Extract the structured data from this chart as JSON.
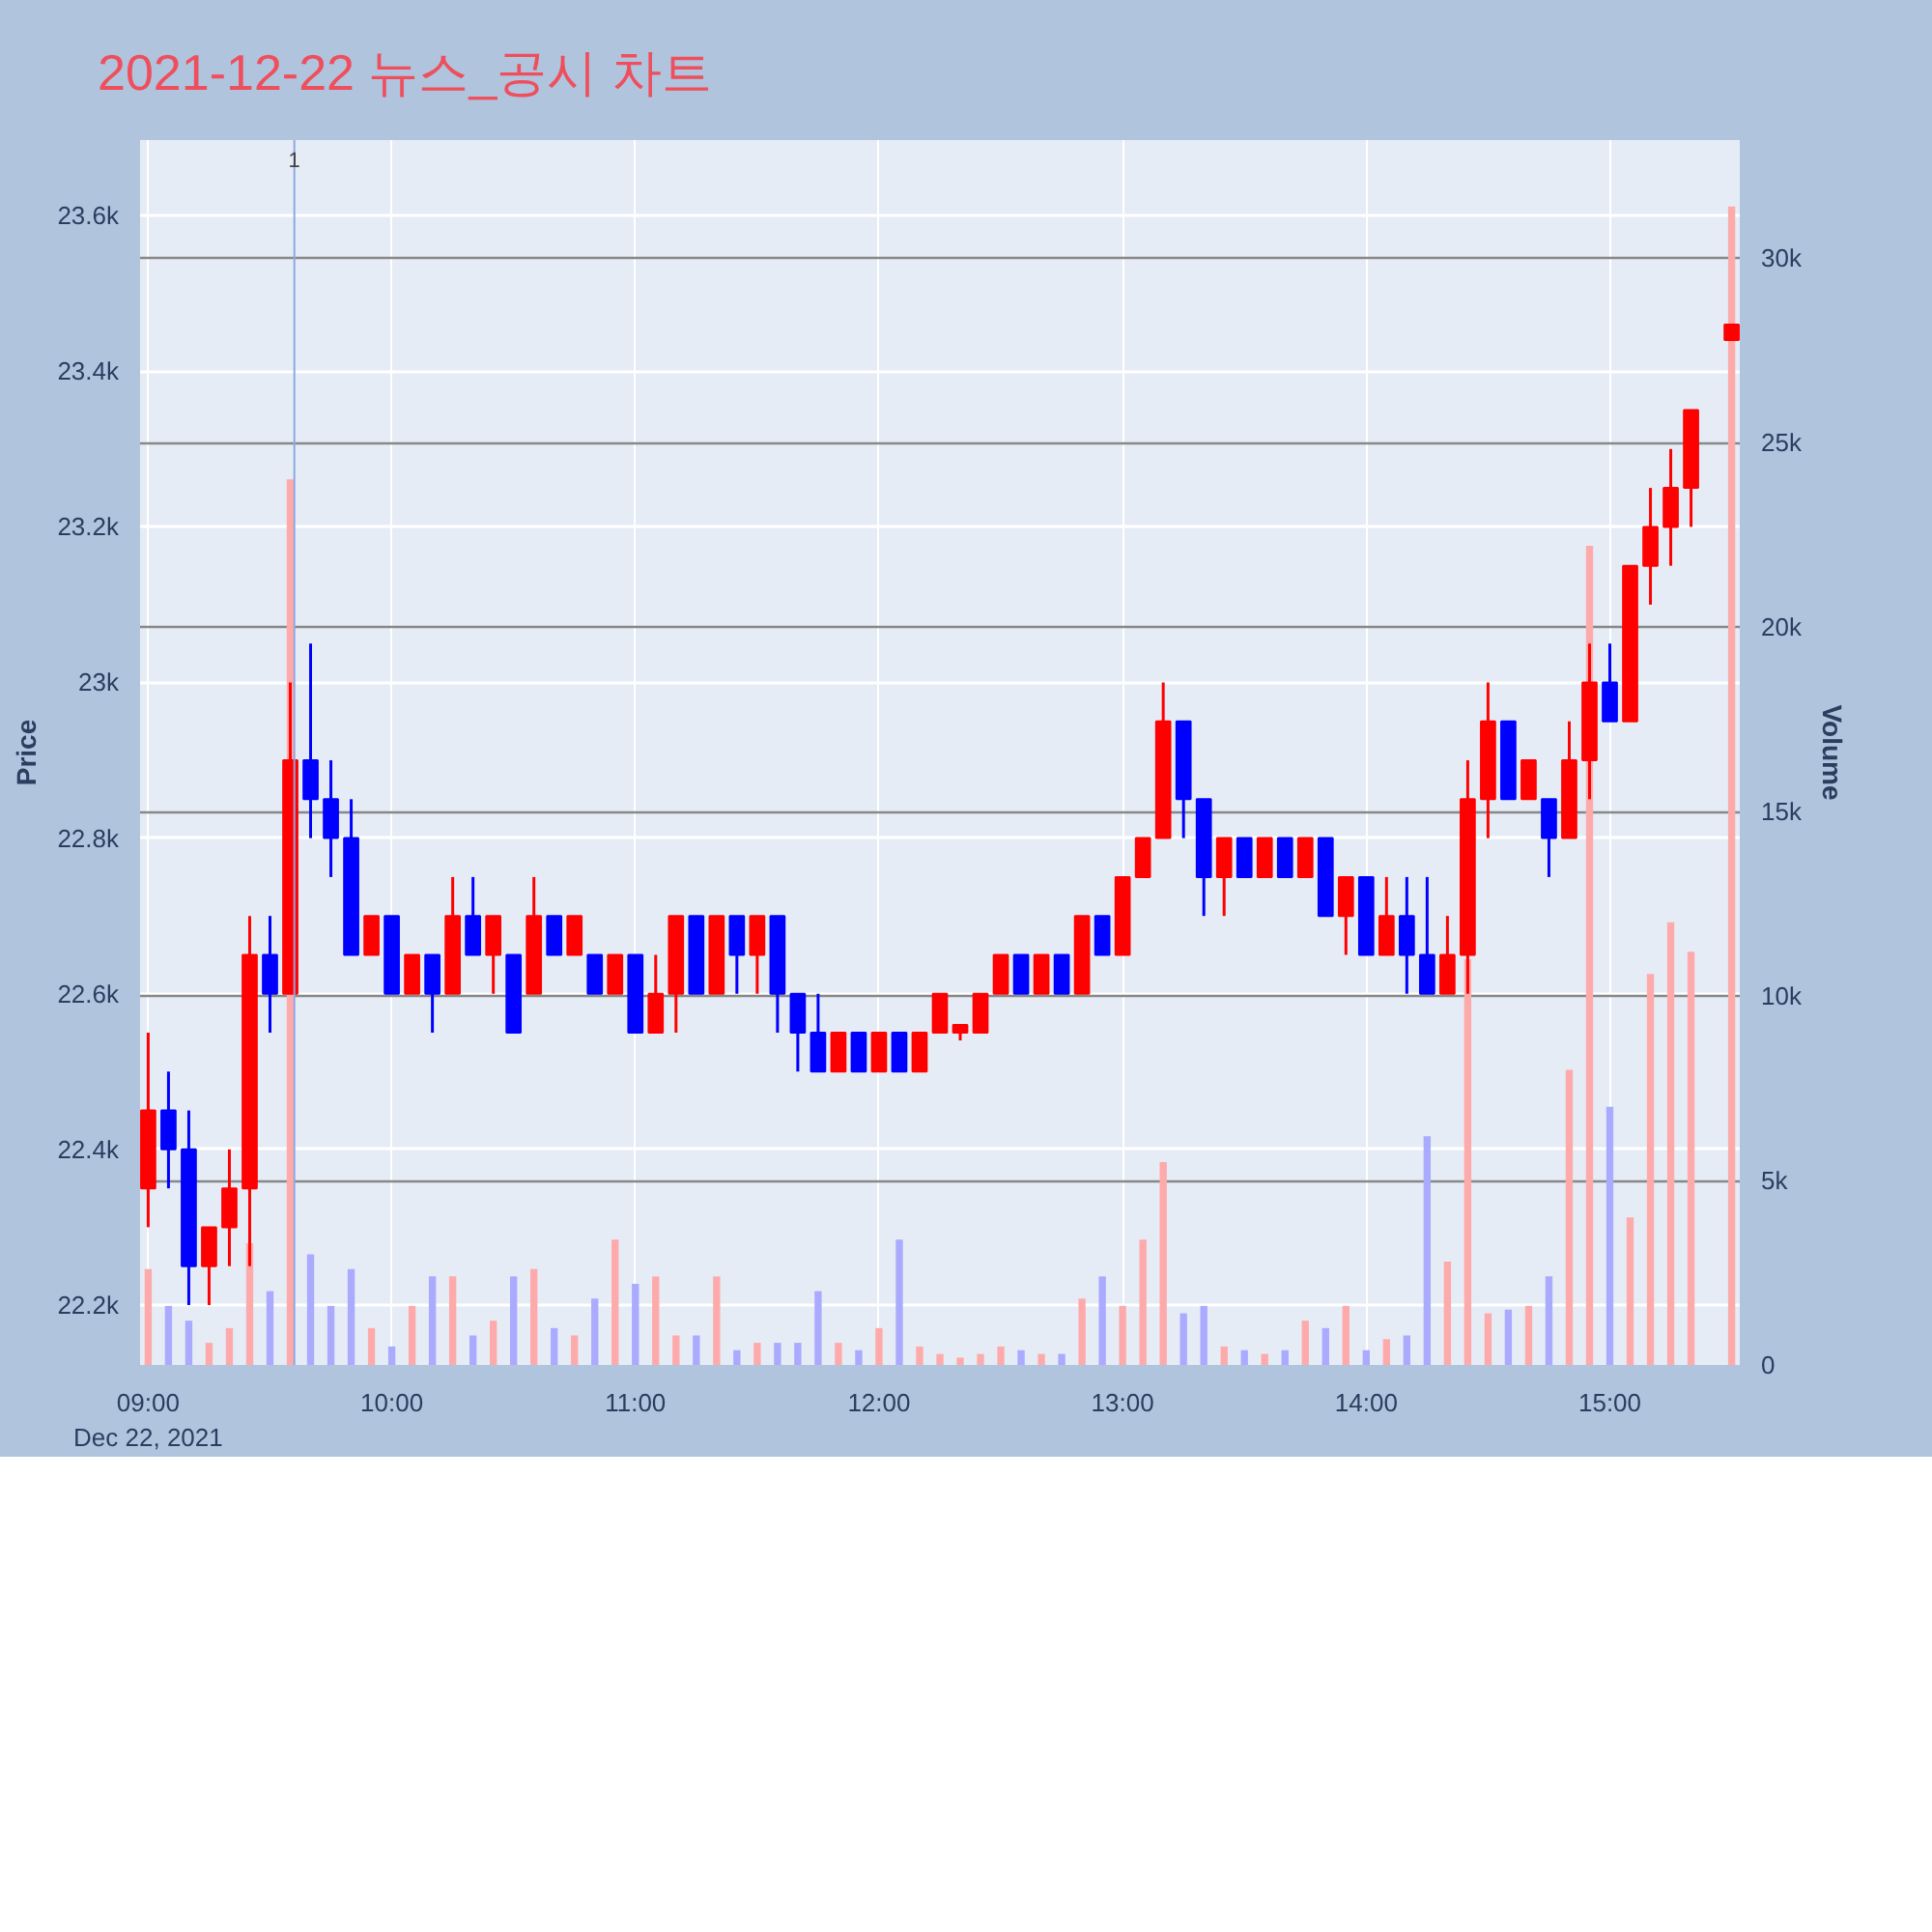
{
  "chart_data": {
    "type": "candlestick",
    "title": "2021-12-22 뉴스_공시 차트",
    "ylabel": "Price",
    "y2label": "Volume",
    "x": [
      "2021-12-22T09:00",
      "2021-12-22T09:05",
      "2021-12-22T09:10",
      "2021-12-22T09:15",
      "2021-12-22T09:20",
      "2021-12-22T09:25",
      "2021-12-22T09:30",
      "2021-12-22T09:35",
      "2021-12-22T09:40",
      "2021-12-22T09:45",
      "2021-12-22T09:50",
      "2021-12-22T09:55",
      "2021-12-22T10:00",
      "2021-12-22T10:05",
      "2021-12-22T10:10",
      "2021-12-22T10:15",
      "2021-12-22T10:20",
      "2021-12-22T10:25",
      "2021-12-22T10:30",
      "2021-12-22T10:35",
      "2021-12-22T10:40",
      "2021-12-22T10:45",
      "2021-12-22T10:50",
      "2021-12-22T10:55",
      "2021-12-22T11:00",
      "2021-12-22T11:05",
      "2021-12-22T11:10",
      "2021-12-22T11:15",
      "2021-12-22T11:20",
      "2021-12-22T11:25",
      "2021-12-22T11:30",
      "2021-12-22T11:35",
      "2021-12-22T11:40",
      "2021-12-22T11:45",
      "2021-12-22T11:50",
      "2021-12-22T11:55",
      "2021-12-22T12:00",
      "2021-12-22T12:05",
      "2021-12-22T12:10",
      "2021-12-22T12:15",
      "2021-12-22T12:20",
      "2021-12-22T12:25",
      "2021-12-22T12:30",
      "2021-12-22T12:35",
      "2021-12-22T12:40",
      "2021-12-22T12:45",
      "2021-12-22T12:50",
      "2021-12-22T12:55",
      "2021-12-22T13:00",
      "2021-12-22T13:05",
      "2021-12-22T13:10",
      "2021-12-22T13:15",
      "2021-12-22T13:20",
      "2021-12-22T13:25",
      "2021-12-22T13:30",
      "2021-12-22T13:35",
      "2021-12-22T13:40",
      "2021-12-22T13:45",
      "2021-12-22T13:50",
      "2021-12-22T13:55",
      "2021-12-22T14:00",
      "2021-12-22T14:05",
      "2021-12-22T14:10",
      "2021-12-22T14:15",
      "2021-12-22T14:20",
      "2021-12-22T14:25",
      "2021-12-22T14:30",
      "2021-12-22T14:35",
      "2021-12-22T14:40",
      "2021-12-22T14:45",
      "2021-12-22T14:50",
      "2021-12-22T14:55",
      "2021-12-22T15:00",
      "2021-12-22T15:05",
      "2021-12-22T15:10",
      "2021-12-22T15:15",
      "2021-12-22T15:20",
      "2021-12-22T15:30"
    ],
    "series": [
      {
        "type": "bar",
        "axis": "y2",
        "values": [
          2600,
          1600,
          1200,
          600,
          1000,
          3300,
          2000,
          24000,
          3000,
          1600,
          2600,
          1000,
          500,
          1600,
          2400,
          2400,
          800,
          1200,
          2400,
          2600,
          1000,
          800,
          1800,
          3400,
          2200,
          2400,
          800,
          800,
          2400,
          400,
          600,
          600,
          600,
          2000,
          600,
          400,
          1000,
          3400,
          500,
          300,
          200,
          300,
          500,
          400,
          300,
          300,
          1800,
          2400,
          1600,
          3400,
          5500,
          1400,
          1600,
          500,
          400,
          300,
          400,
          1200,
          1000,
          1600,
          400,
          700,
          800,
          6200,
          2800,
          11000,
          1400,
          1500,
          1600,
          2400,
          8000,
          22200,
          7000,
          4000,
          10600,
          12000,
          11200,
          31400
        ],
        "colors": [
          "#ffaaaa",
          "#aaaaff",
          "#aaaaff",
          "#ffaaaa",
          "#ffaaaa",
          "#ffaaaa",
          "#aaaaff",
          "#ffaaaa",
          "#aaaaff",
          "#aaaaff",
          "#aaaaff",
          "#ffaaaa",
          "#aaaaff",
          "#ffaaaa",
          "#aaaaff",
          "#ffaaaa",
          "#aaaaff",
          "#ffaaaa",
          "#aaaaff",
          "#ffaaaa",
          "#aaaaff",
          "#ffaaaa",
          "#aaaaff",
          "#ffaaaa",
          "#aaaaff",
          "#ffaaaa",
          "#ffaaaa",
          "#aaaaff",
          "#ffaaaa",
          "#aaaaff",
          "#ffaaaa",
          "#aaaaff",
          "#aaaaff",
          "#aaaaff",
          "#ffaaaa",
          "#aaaaff",
          "#ffaaaa",
          "#aaaaff",
          "#ffaaaa",
          "#ffaaaa",
          "#ffaaaa",
          "#ffaaaa",
          "#ffaaaa",
          "#aaaaff",
          "#ffaaaa",
          "#aaaaff",
          "#ffaaaa",
          "#aaaaff",
          "#ffaaaa",
          "#ffaaaa",
          "#ffaaaa",
          "#aaaaff",
          "#aaaaff",
          "#ffaaaa",
          "#aaaaff",
          "#ffaaaa",
          "#aaaaff",
          "#ffaaaa",
          "#aaaaff",
          "#ffaaaa",
          "#aaaaff",
          "#ffaaaa",
          "#aaaaff",
          "#aaaaff",
          "#ffaaaa",
          "#ffaaaa",
          "#ffaaaa",
          "#aaaaff",
          "#ffaaaa",
          "#aaaaff",
          "#ffaaaa",
          "#ffaaaa",
          "#aaaaff",
          "#ffaaaa",
          "#ffaaaa",
          "#ffaaaa",
          "#ffaaaa",
          "#ffaaaa"
        ]
      },
      {
        "ohlc": [
          [
            22350,
            22550,
            22300,
            22450
          ],
          [
            22450,
            22500,
            22350,
            22400
          ],
          [
            22400,
            22450,
            22200,
            22250
          ],
          [
            22250,
            22300,
            22200,
            22300
          ],
          [
            22300,
            22400,
            22250,
            22350
          ],
          [
            22350,
            22700,
            22250,
            22650
          ],
          [
            22650,
            22700,
            22550,
            22600
          ],
          [
            22600,
            23000,
            22600,
            22900
          ],
          [
            22900,
            23050,
            22800,
            22850
          ],
          [
            22850,
            22900,
            22750,
            22800
          ],
          [
            22800,
            22850,
            22650,
            22650
          ],
          [
            22650,
            22700,
            22650,
            22700
          ],
          [
            22700,
            22700,
            22600,
            22600
          ],
          [
            22600,
            22650,
            22600,
            22650
          ],
          [
            22650,
            22650,
            22550,
            22600
          ],
          [
            22600,
            22750,
            22600,
            22700
          ],
          [
            22700,
            22750,
            22650,
            22650
          ],
          [
            22650,
            22700,
            22600,
            22700
          ],
          [
            22650,
            22650,
            22550,
            22550
          ],
          [
            22600,
            22750,
            22600,
            22700
          ],
          [
            22700,
            22700,
            22650,
            22650
          ],
          [
            22650,
            22700,
            22650,
            22700
          ],
          [
            22650,
            22650,
            22600,
            22600
          ],
          [
            22600,
            22650,
            22600,
            22650
          ],
          [
            22650,
            22650,
            22550,
            22550
          ],
          [
            22550,
            22650,
            22550,
            22600
          ],
          [
            22600,
            22700,
            22550,
            22700
          ],
          [
            22700,
            22700,
            22600,
            22600
          ],
          [
            22600,
            22700,
            22600,
            22700
          ],
          [
            22700,
            22700,
            22600,
            22650
          ],
          [
            22650,
            22700,
            22600,
            22700
          ],
          [
            22700,
            22700,
            22550,
            22600
          ],
          [
            22600,
            22600,
            22500,
            22550
          ],
          [
            22550,
            22600,
            22500,
            22500
          ],
          [
            22500,
            22550,
            22500,
            22550
          ],
          [
            22550,
            22550,
            22500,
            22500
          ],
          [
            22500,
            22550,
            22500,
            22550
          ],
          [
            22550,
            22550,
            22500,
            22500
          ],
          [
            22500,
            22550,
            22500,
            22550
          ],
          [
            22550,
            22600,
            22550,
            22600
          ],
          [
            22550,
            22560,
            22540,
            22560
          ],
          [
            22550,
            22600,
            22550,
            22600
          ],
          [
            22600,
            22650,
            22600,
            22650
          ],
          [
            22650,
            22650,
            22600,
            22600
          ],
          [
            22600,
            22650,
            22600,
            22650
          ],
          [
            22650,
            22650,
            22600,
            22600
          ],
          [
            22600,
            22700,
            22600,
            22700
          ],
          [
            22700,
            22700,
            22650,
            22650
          ],
          [
            22650,
            22750,
            22650,
            22750
          ],
          [
            22750,
            22800,
            22750,
            22800
          ],
          [
            22800,
            23000,
            22800,
            22950
          ],
          [
            22950,
            22950,
            22800,
            22850
          ],
          [
            22850,
            22850,
            22700,
            22750
          ],
          [
            22750,
            22800,
            22700,
            22800
          ],
          [
            22800,
            22800,
            22750,
            22750
          ],
          [
            22750,
            22800,
            22750,
            22800
          ],
          [
            22800,
            22800,
            22750,
            22750
          ],
          [
            22750,
            22800,
            22750,
            22800
          ],
          [
            22800,
            22800,
            22700,
            22700
          ],
          [
            22700,
            22750,
            22650,
            22750
          ],
          [
            22750,
            22750,
            22650,
            22650
          ],
          [
            22650,
            22750,
            22650,
            22700
          ],
          [
            22700,
            22750,
            22600,
            22650
          ],
          [
            22650,
            22750,
            22600,
            22600
          ],
          [
            22600,
            22700,
            22600,
            22650
          ],
          [
            22650,
            22900,
            22600,
            22850
          ],
          [
            22850,
            23000,
            22800,
            22950
          ],
          [
            22950,
            22950,
            22850,
            22850
          ],
          [
            22850,
            22900,
            22850,
            22900
          ],
          [
            22850,
            22850,
            22750,
            22800
          ],
          [
            22800,
            22950,
            22800,
            22900
          ],
          [
            22900,
            23050,
            22850,
            23000
          ],
          [
            23000,
            23050,
            22950,
            22950
          ],
          [
            22950,
            23150,
            22950,
            23150
          ],
          [
            23150,
            23250,
            23100,
            23200
          ],
          [
            23200,
            23300,
            23150,
            23250
          ],
          [
            23250,
            23350,
            23200,
            23350
          ],
          [
            23440,
            23460,
            23440,
            23460
          ]
        ],
        "colors": [
          "#ff0000",
          "#0000ff",
          "#0000ff",
          "#ff0000",
          "#ff0000",
          "#ff0000",
          "#0000ff",
          "#ff0000",
          "#0000ff",
          "#0000ff",
          "#0000ff",
          "#ff0000",
          "#0000ff",
          "#ff0000",
          "#0000ff",
          "#ff0000",
          "#0000ff",
          "#ff0000",
          "#0000ff",
          "#ff0000",
          "#0000ff",
          "#ff0000",
          "#0000ff",
          "#ff0000",
          "#0000ff",
          "#ff0000",
          "#ff0000",
          "#0000ff",
          "#ff0000",
          "#0000ff",
          "#ff0000",
          "#0000ff",
          "#0000ff",
          "#0000ff",
          "#ff0000",
          "#0000ff",
          "#ff0000",
          "#0000ff",
          "#ff0000",
          "#ff0000",
          "#ff0000",
          "#ff0000",
          "#ff0000",
          "#0000ff",
          "#ff0000",
          "#0000ff",
          "#ff0000",
          "#0000ff",
          "#ff0000",
          "#ff0000",
          "#ff0000",
          "#0000ff",
          "#0000ff",
          "#ff0000",
          "#0000ff",
          "#ff0000",
          "#0000ff",
          "#ff0000",
          "#0000ff",
          "#ff0000",
          "#0000ff",
          "#ff0000",
          "#0000ff",
          "#0000ff",
          "#ff0000",
          "#ff0000",
          "#ff0000",
          "#0000ff",
          "#ff0000",
          "#0000ff",
          "#ff0000",
          "#ff0000",
          "#0000ff",
          "#ff0000",
          "#ff0000",
          "#ff0000",
          "#ff0000",
          "#ff0000"
        ]
      }
    ],
    "xlim": [
      "2021-12-22T08:58",
      "2021-12-22T15:32"
    ],
    "xticks": [
      {
        "value": "2021-12-22T09:00",
        "label": "09:00\nDec 22, 2021"
      },
      {
        "value": "2021-12-22T10:00",
        "label": "10:00"
      },
      {
        "value": "2021-12-22T11:00",
        "label": "11:00"
      },
      {
        "value": "2021-12-22T12:00",
        "label": "12:00"
      },
      {
        "value": "2021-12-22T13:00",
        "label": "13:00"
      },
      {
        "value": "2021-12-22T14:00",
        "label": "14:00"
      },
      {
        "value": "2021-12-22T15:00",
        "label": "15:00"
      }
    ],
    "ylim": [
      22123,
      23697
    ],
    "yticks": [
      {
        "value": 22200,
        "label": "22.2k"
      },
      {
        "value": 22400,
        "label": "22.4k"
      },
      {
        "value": 22600,
        "label": "22.6k"
      },
      {
        "value": 22800,
        "label": "22.8k"
      },
      {
        "value": 23000,
        "label": "23k"
      },
      {
        "value": 23200,
        "label": "23.2k"
      },
      {
        "value": 23400,
        "label": "23.4k"
      },
      {
        "value": 23600,
        "label": "23.6k"
      }
    ],
    "y2lim": [
      0,
      33200
    ],
    "y2ticks": [
      0,
      {
        "value": 5000,
        "label": "5k"
      },
      {
        "value": 10000,
        "label": "10k"
      },
      {
        "value": 15000,
        "label": "15k"
      },
      {
        "value": 20000,
        "label": "20k"
      },
      {
        "value": 25000,
        "label": "25k"
      },
      {
        "value": 30000,
        "label": "30k"
      }
    ],
    "ref_lines": [
      {
        "axis": "x",
        "value": "2021-12-22T09:36",
        "label": "1",
        "color": "#8fa8e0"
      }
    ],
    "grid": true
  }
}
